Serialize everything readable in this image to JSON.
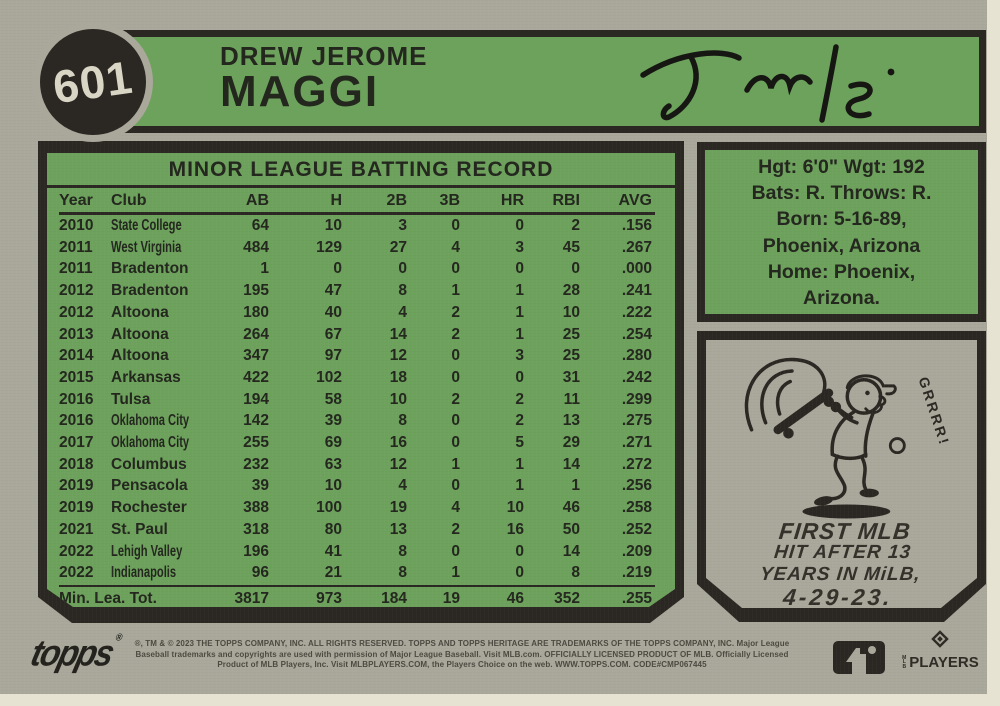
{
  "colors": {
    "green": "#6da25c",
    "card": "#a9a89b",
    "frame": "#2b2823",
    "cream": "#e7e3d2",
    "ink": "#23271e",
    "creamtext": "#d9d6c6",
    "footerink": "#4c4a40"
  },
  "card": {
    "number": "601",
    "name_first": "DREW JEROME",
    "name_last": "MAGGI"
  },
  "stats": {
    "title": "MINOR LEAGUE BATTING RECORD",
    "columns": [
      "Year",
      "Club",
      "AB",
      "H",
      "2B",
      "3B",
      "HR",
      "RBI",
      "AVG"
    ],
    "rows": [
      [
        "2010",
        "State College",
        "64",
        "10",
        "3",
        "0",
        "0",
        "2",
        ".156"
      ],
      [
        "2011",
        "West Virginia",
        "484",
        "129",
        "27",
        "4",
        "3",
        "45",
        ".267"
      ],
      [
        "2011",
        "Bradenton",
        "1",
        "0",
        "0",
        "0",
        "0",
        "0",
        ".000"
      ],
      [
        "2012",
        "Bradenton",
        "195",
        "47",
        "8",
        "1",
        "1",
        "28",
        ".241"
      ],
      [
        "2012",
        "Altoona",
        "180",
        "40",
        "4",
        "2",
        "1",
        "10",
        ".222"
      ],
      [
        "2013",
        "Altoona",
        "264",
        "67",
        "14",
        "2",
        "1",
        "25",
        ".254"
      ],
      [
        "2014",
        "Altoona",
        "347",
        "97",
        "12",
        "0",
        "3",
        "25",
        ".280"
      ],
      [
        "2015",
        "Arkansas",
        "422",
        "102",
        "18",
        "0",
        "0",
        "31",
        ".242"
      ],
      [
        "2016",
        "Tulsa",
        "194",
        "58",
        "10",
        "2",
        "2",
        "11",
        ".299"
      ],
      [
        "2016",
        "Oklahoma City",
        "142",
        "39",
        "8",
        "0",
        "2",
        "13",
        ".275"
      ],
      [
        "2017",
        "Oklahoma City",
        "255",
        "69",
        "16",
        "0",
        "5",
        "29",
        ".271"
      ],
      [
        "2018",
        "Columbus",
        "232",
        "63",
        "12",
        "1",
        "1",
        "14",
        ".272"
      ],
      [
        "2019",
        "Pensacola",
        "39",
        "10",
        "4",
        "0",
        "1",
        "1",
        ".256"
      ],
      [
        "2019",
        "Rochester",
        "388",
        "100",
        "19",
        "4",
        "10",
        "46",
        ".258"
      ],
      [
        "2021",
        "St. Paul",
        "318",
        "80",
        "13",
        "2",
        "16",
        "50",
        ".252"
      ],
      [
        "2022",
        "Lehigh Valley",
        "196",
        "41",
        "8",
        "0",
        "0",
        "14",
        ".209"
      ],
      [
        "2022",
        "Indianapolis",
        "96",
        "21",
        "8",
        "1",
        "0",
        "8",
        ".219"
      ]
    ],
    "totals": [
      "Min. Lea. Tot.",
      "3817",
      "973",
      "184",
      "19",
      "46",
      "352",
      ".255"
    ]
  },
  "bio": {
    "lines": [
      "Hgt: 6'0\"  Wgt: 192",
      "Bats: R.   Throws: R.",
      "Born: 5-16-89,",
      "Phoenix, Arizona",
      "Home: Phoenix,",
      "Arizona."
    ]
  },
  "cartoon": {
    "sound_effect": "GRRRR!",
    "caption_lines": [
      "FIRST MLB",
      "HIT AFTER 13",
      "YEARS IN MiLB,",
      "4-29-23."
    ]
  },
  "footer": {
    "topps_text": "topps",
    "topps_reg": "®",
    "legal_lines": [
      "®, TM & © 2023 THE TOPPS COMPANY, INC.  ALL RIGHTS RESERVED.  TOPPS AND TOPPS HERITAGE ARE TRADEMARKS OF THE TOPPS COMPANY, INC. Major League",
      "Baseball trademarks and copyrights are used with permission of Major League Baseball. Visit MLB.com. OFFICIALLY LICENSED PRODUCT OF MLB. Officially Licensed",
      "Product of MLB Players, Inc. Visit MLBPLAYERS.COM, the Players Choice on the web. WWW.TOPPS.COM. CODE#CMP067445"
    ],
    "mlbpa_prefix": "MLB",
    "mlbpa_text": "PLAYERS"
  }
}
